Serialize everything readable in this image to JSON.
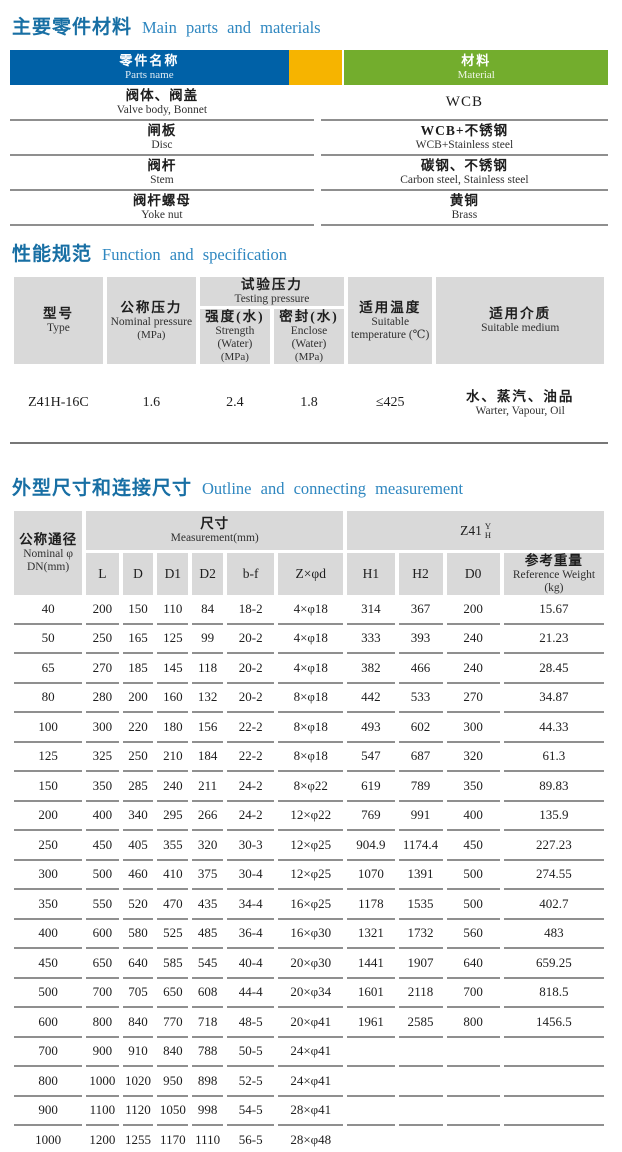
{
  "colors": {
    "title_zh": "#186fa4",
    "title_en": "#2f87c0",
    "header_blue": "#0061a7",
    "header_yellow": "#f6b400",
    "header_green": "#73ad2d",
    "cell_gray": "#d9d9d9",
    "line_gray": "#8f8f8f"
  },
  "materials_section": {
    "title_zh": "主要零件材料",
    "title_en": "Main parts and materials",
    "header": {
      "parts_zh": "零件名称",
      "parts_en": "Parts name",
      "material_zh": "材料",
      "material_en": "Material"
    },
    "rows": [
      {
        "part_zh": "阀体、阀盖",
        "part_en": "Valve body, Bonnet",
        "material_zh": "WCB",
        "material_en": ""
      },
      {
        "part_zh": "闸板",
        "part_en": "Disc",
        "material_zh": "WCB+不锈钢",
        "material_en": "WCB+Stainless steel"
      },
      {
        "part_zh": "阀杆",
        "part_en": "Stem",
        "material_zh": "碳钢、不锈钢",
        "material_en": "Carbon steel, Stainless steel"
      },
      {
        "part_zh": "阀杆螺母",
        "part_en": "Yoke nut",
        "material_zh": "黄铜",
        "material_en": "Brass"
      }
    ]
  },
  "spec_section": {
    "title_zh": "性能规范",
    "title_en": "Function and specification",
    "header": {
      "type_zh": "型号",
      "type_en": "Type",
      "nominal_zh": "公称压力",
      "nominal_en": "Nominal pressure",
      "nominal_unit": "(MPa)",
      "testing_zh": "试验压力",
      "testing_en": "Testing pressure",
      "strength_zh": "强度(水)",
      "strength_en": "Strength (Water)",
      "strength_unit": "(MPa)",
      "enclose_zh": "密封(水)",
      "enclose_en": "Enclose (Water)",
      "enclose_unit": "(MPa)",
      "temp_zh": "适用温度",
      "temp_en": "Suitable",
      "temp_en2": "temperature (℃)",
      "medium_zh": "适用介质",
      "medium_en": "Suitable medium"
    },
    "row": {
      "type": "Z41H-16C",
      "nominal_pressure": "1.6",
      "strength": "2.4",
      "enclose": "1.8",
      "temperature": "≤425",
      "medium_zh": "水、蒸汽、油品",
      "medium_en": "Warter, Vapour, Oil"
    }
  },
  "dimensions_section": {
    "title_zh": "外型尺寸和连接尺寸",
    "title_en": "Outline and connecting measurement",
    "header": {
      "dn_zh": "公称通径",
      "dn_en": "Nominal φ",
      "dn_unit": "DN(mm)",
      "measurement_zh": "尺寸",
      "measurement_en": "Measurement(mm)",
      "model": "Z41",
      "model_sup": "Y",
      "model_sub": "H",
      "col_labels": [
        "L",
        "D",
        "D1",
        "D2",
        "b-f",
        "Z×φd",
        "H1",
        "H2",
        "D0"
      ],
      "weight_zh": "参考重量",
      "weight_en": "Reference Weight (kg)"
    },
    "rows": [
      [
        "40",
        "200",
        "150",
        "110",
        "84",
        "18-2",
        "4×φ18",
        "314",
        "367",
        "200",
        "15.67"
      ],
      [
        "50",
        "250",
        "165",
        "125",
        "99",
        "20-2",
        "4×φ18",
        "333",
        "393",
        "240",
        "21.23"
      ],
      [
        "65",
        "270",
        "185",
        "145",
        "118",
        "20-2",
        "4×φ18",
        "382",
        "466",
        "240",
        "28.45"
      ],
      [
        "80",
        "280",
        "200",
        "160",
        "132",
        "20-2",
        "8×φ18",
        "442",
        "533",
        "270",
        "34.87"
      ],
      [
        "100",
        "300",
        "220",
        "180",
        "156",
        "22-2",
        "8×φ18",
        "493",
        "602",
        "300",
        "44.33"
      ],
      [
        "125",
        "325",
        "250",
        "210",
        "184",
        "22-2",
        "8×φ18",
        "547",
        "687",
        "320",
        "61.3"
      ],
      [
        "150",
        "350",
        "285",
        "240",
        "211",
        "24-2",
        "8×φ22",
        "619",
        "789",
        "350",
        "89.83"
      ],
      [
        "200",
        "400",
        "340",
        "295",
        "266",
        "24-2",
        "12×φ22",
        "769",
        "991",
        "400",
        "135.9"
      ],
      [
        "250",
        "450",
        "405",
        "355",
        "320",
        "30-3",
        "12×φ25",
        "904.9",
        "1174.4",
        "450",
        "227.23"
      ],
      [
        "300",
        "500",
        "460",
        "410",
        "375",
        "30-4",
        "12×φ25",
        "1070",
        "1391",
        "500",
        "274.55"
      ],
      [
        "350",
        "550",
        "520",
        "470",
        "435",
        "34-4",
        "16×φ25",
        "1178",
        "1535",
        "500",
        "402.7"
      ],
      [
        "400",
        "600",
        "580",
        "525",
        "485",
        "36-4",
        "16×φ30",
        "1321",
        "1732",
        "560",
        "483"
      ],
      [
        "450",
        "650",
        "640",
        "585",
        "545",
        "40-4",
        "20×φ30",
        "1441",
        "1907",
        "640",
        "659.25"
      ],
      [
        "500",
        "700",
        "705",
        "650",
        "608",
        "44-4",
        "20×φ34",
        "1601",
        "2118",
        "700",
        "818.5"
      ],
      [
        "600",
        "800",
        "840",
        "770",
        "718",
        "48-5",
        "20×φ41",
        "1961",
        "2585",
        "800",
        "1456.5"
      ],
      [
        "700",
        "900",
        "910",
        "840",
        "788",
        "50-5",
        "24×φ41",
        "",
        "",
        "",
        ""
      ],
      [
        "800",
        "1000",
        "1020",
        "950",
        "898",
        "52-5",
        "24×φ41",
        "",
        "",
        "",
        ""
      ],
      [
        "900",
        "1100",
        "1120",
        "1050",
        "998",
        "54-5",
        "28×φ41",
        "",
        "",
        "",
        ""
      ],
      [
        "1000",
        "1200",
        "1255",
        "1170",
        "1110",
        "56-5",
        "28×φ48",
        "",
        "",
        "",
        ""
      ]
    ]
  }
}
